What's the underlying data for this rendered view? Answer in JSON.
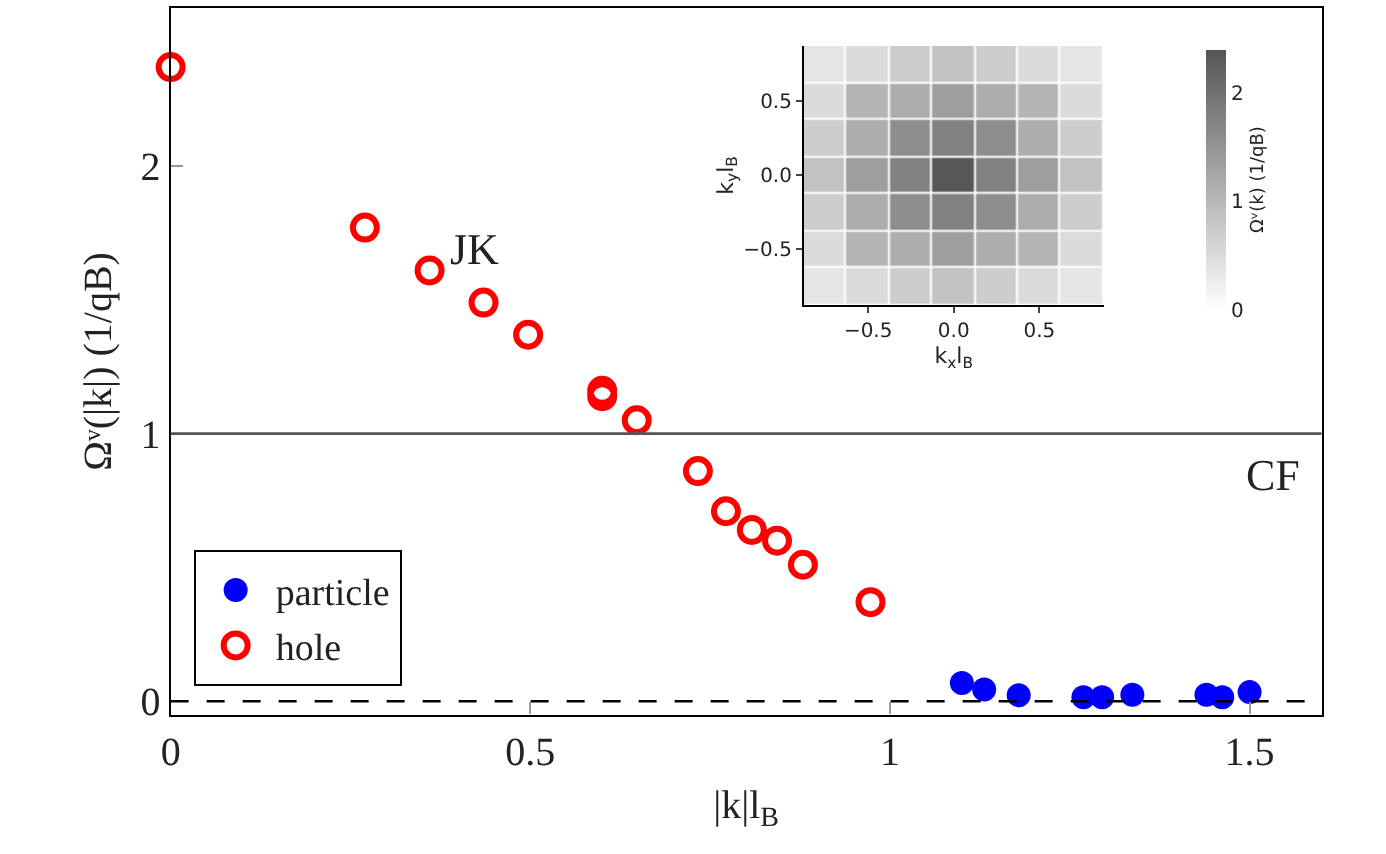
{
  "chart_data": [
    {
      "type": "scatter",
      "xlabel": "|k|l$_{B}$",
      "ylabel": "Ωᵛ(|k|) (1/qB)",
      "xlim": [
        0,
        1.6
      ],
      "ylim": [
        -0.05,
        2.59
      ],
      "xticks": [
        0,
        0.5,
        1,
        1.5
      ],
      "yticks": [
        0,
        1,
        2
      ],
      "legend": "bottom left",
      "series": [
        {
          "name": "particle",
          "color": "#0000ff",
          "marker": "circle",
          "x": [
            1.1,
            1.131,
            1.179,
            1.269,
            1.295,
            1.337,
            1.44,
            1.462,
            1.5
          ],
          "values": [
            0.068,
            0.044,
            0.022,
            0.015,
            0.015,
            0.024,
            0.024,
            0.015,
            0.034
          ]
        },
        {
          "name": "hole",
          "color": "#ff0000",
          "marker": "circle-open",
          "x": [
            0,
            0.27,
            0.36,
            0.435,
            0.497,
            0.6,
            0.6,
            0.648,
            0.733,
            0.772,
            0.808,
            0.843,
            0.879,
            0.973
          ],
          "values": [
            2.37,
            1.77,
            1.61,
            1.49,
            1.37,
            1.16,
            1.14,
            1.05,
            0.86,
            0.71,
            0.64,
            0.6,
            0.51,
            0.37
          ]
        }
      ],
      "ref_lines": [
        {
          "axis": "y",
          "value": 1,
          "color": "#555555",
          "line_style": "solid"
        },
        {
          "axis": "y",
          "value": 0,
          "color": "#000000",
          "line_style": "dashed"
        }
      ],
      "annotations": [
        "JK",
        "CF"
      ]
    },
    {
      "type": "heatmap",
      "xlabel": "k$_{x}$l$_{B}$",
      "ylabel": "k$_{y}$l$_{B}$",
      "clabel": "Ωᵛ(k) (1/qB)",
      "categories": [
        null,
        "−0.5",
        null,
        "0.0",
        null,
        "0.5",
        null
      ],
      "y_categories": [
        null,
        "0.5",
        null,
        "0.0",
        null,
        "−0.5",
        null
      ],
      "clim": [
        0,
        2.4
      ],
      "cticks": [
        0,
        1,
        2
      ],
      "cells": [
        [
          0.37,
          0.51,
          0.71,
          0.86,
          0.71,
          0.51,
          0.37
        ],
        [
          0.51,
          1.05,
          1.16,
          1.37,
          1.16,
          1.05,
          0.51
        ],
        [
          0.71,
          1.16,
          1.61,
          1.77,
          1.61,
          1.16,
          0.71
        ],
        [
          0.86,
          1.37,
          1.77,
          2.37,
          1.77,
          1.37,
          0.86
        ],
        [
          0.71,
          1.16,
          1.61,
          1.77,
          1.61,
          1.16,
          0.71
        ],
        [
          0.51,
          1.05,
          1.16,
          1.37,
          1.16,
          1.05,
          0.51
        ],
        [
          0.37,
          0.51,
          0.71,
          0.86,
          0.71,
          0.51,
          0.37
        ]
      ]
    }
  ]
}
